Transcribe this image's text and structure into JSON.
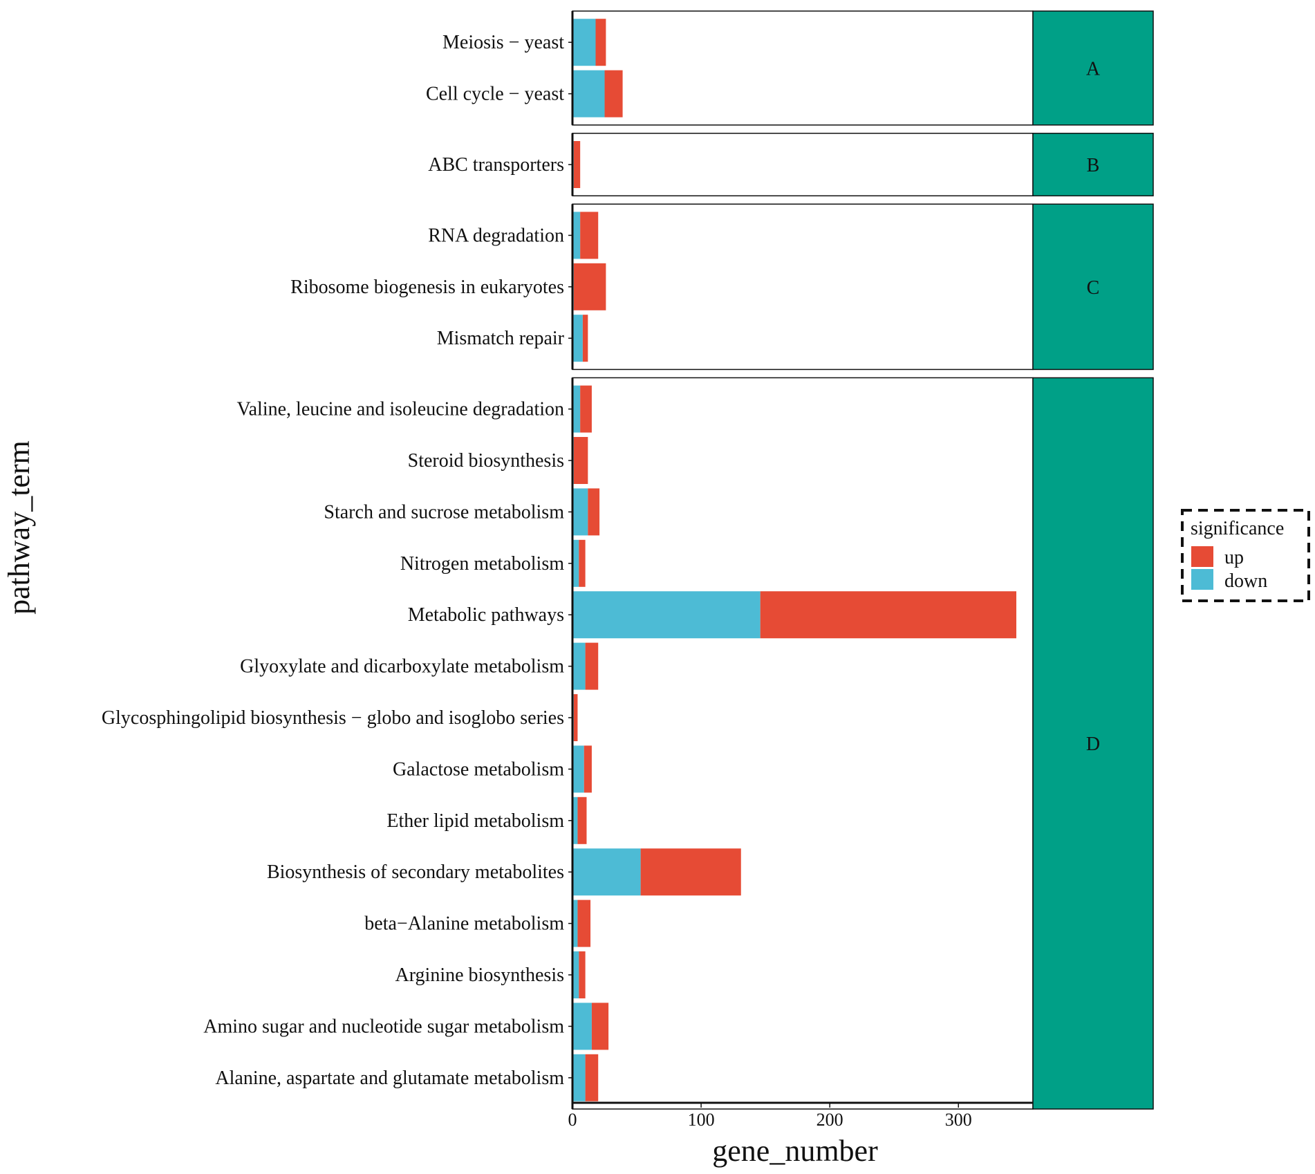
{
  "chart_data": {
    "type": "bar",
    "orientation": "horizontal",
    "stacked": true,
    "xlabel": "gene_number",
    "ylabel": "pathway_term",
    "xlim": [
      0,
      345
    ],
    "xticks": [
      "0",
      "100",
      "200",
      "300"
    ],
    "legend": {
      "title": "significance",
      "position": "right",
      "entries": [
        "up",
        "down"
      ]
    },
    "colors": {
      "up": "#e64b35",
      "down": "#4dbbd5",
      "strip": "#00a087"
    },
    "panels": [
      {
        "label": "A",
        "pathways": [
          {
            "name": "Meiosis − yeast",
            "down": 18,
            "up": 8
          },
          {
            "name": "Cell cycle − yeast",
            "down": 25,
            "up": 14
          }
        ]
      },
      {
        "label": "B",
        "pathways": [
          {
            "name": "ABC transporters",
            "down": 1,
            "up": 5
          }
        ]
      },
      {
        "label": "C",
        "pathways": [
          {
            "name": "RNA degradation",
            "down": 6,
            "up": 14
          },
          {
            "name": "Ribosome biogenesis in eukaryotes",
            "down": 1,
            "up": 25
          },
          {
            "name": "Mismatch repair",
            "down": 8,
            "up": 4
          }
        ]
      },
      {
        "label": "D",
        "pathways": [
          {
            "name": "Valine, leucine and isoleucine degradation",
            "down": 6,
            "up": 9
          },
          {
            "name": "Steroid biosynthesis",
            "down": 1,
            "up": 11
          },
          {
            "name": "Starch and sucrose metabolism",
            "down": 12,
            "up": 9
          },
          {
            "name": "Nitrogen metabolism",
            "down": 5,
            "up": 5
          },
          {
            "name": "Metabolic pathways",
            "down": 146,
            "up": 199
          },
          {
            "name": "Glyoxylate and dicarboxylate metabolism",
            "down": 10,
            "up": 10
          },
          {
            "name": "Glycosphingolipid biosynthesis − globo and isoglobo series",
            "down": 1,
            "up": 3
          },
          {
            "name": "Galactose metabolism",
            "down": 9,
            "up": 6
          },
          {
            "name": "Ether lipid metabolism",
            "down": 4,
            "up": 7
          },
          {
            "name": "Biosynthesis of secondary metabolites",
            "down": 53,
            "up": 78
          },
          {
            "name": "beta−Alanine metabolism",
            "down": 4,
            "up": 10
          },
          {
            "name": "Arginine biosynthesis",
            "down": 5,
            "up": 5
          },
          {
            "name": "Amino sugar and nucleotide sugar metabolism",
            "down": 15,
            "up": 13
          },
          {
            "name": "Alanine, aspartate and glutamate metabolism",
            "down": 10,
            "up": 10
          }
        ]
      }
    ]
  }
}
